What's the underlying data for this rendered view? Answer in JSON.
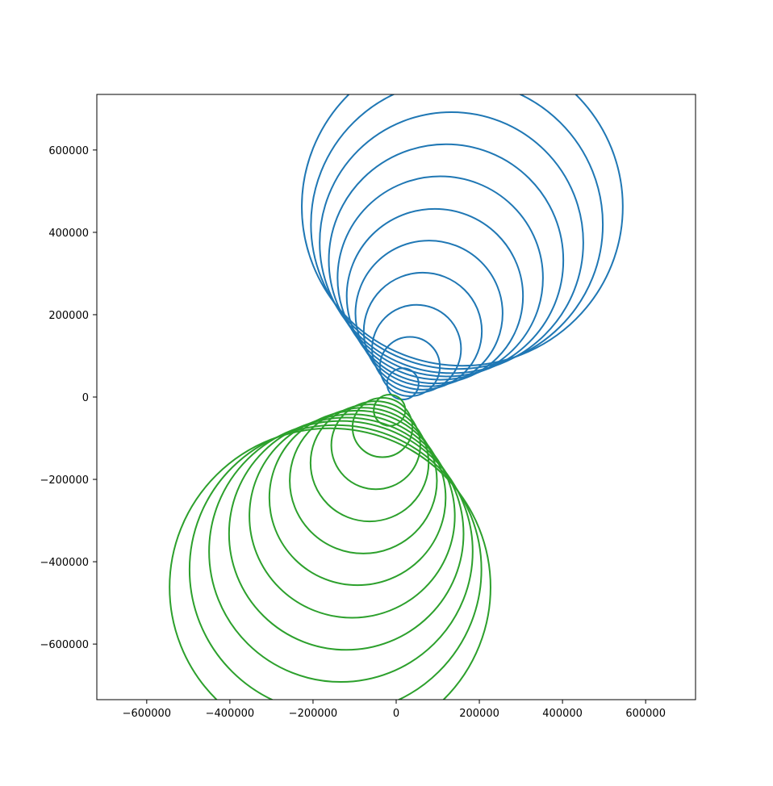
{
  "chart_data": {
    "type": "line",
    "title": "",
    "xlabel": "",
    "ylabel": "",
    "xlim": [
      -720000,
      720000
    ],
    "ylim": [
      -735000,
      735000
    ],
    "grid": false,
    "legend": "none",
    "x_ticks": [
      {
        "value": -600000,
        "label": "−600000"
      },
      {
        "value": -400000,
        "label": "−400000"
      },
      {
        "value": -200000,
        "label": "−200000"
      },
      {
        "value": 0,
        "label": "0"
      },
      {
        "value": 200000,
        "label": "200000"
      },
      {
        "value": 400000,
        "label": "400000"
      },
      {
        "value": 600000,
        "label": "600000"
      }
    ],
    "y_ticks": [
      {
        "value": -600000,
        "label": "−600000"
      },
      {
        "value": -400000,
        "label": "−400000"
      },
      {
        "value": -200000,
        "label": "−200000"
      },
      {
        "value": 0,
        "label": "0"
      },
      {
        "value": 200000,
        "label": "200000"
      },
      {
        "value": 400000,
        "label": "400000"
      },
      {
        "value": 600000,
        "label": "600000"
      }
    ],
    "series": [
      {
        "color": "#1f77b4",
        "circles": [
          {
            "cx": 16000,
            "cy": 32000,
            "r": 38000
          },
          {
            "cx": 33000,
            "cy": 74000,
            "r": 72000
          },
          {
            "cx": 49000,
            "cy": 117000,
            "r": 107000
          },
          {
            "cx": 64000,
            "cy": 160000,
            "r": 142000
          },
          {
            "cx": 79000,
            "cy": 203000,
            "r": 177000
          },
          {
            "cx": 93000,
            "cy": 245000,
            "r": 212000
          },
          {
            "cx": 106000,
            "cy": 289000,
            "r": 247000
          },
          {
            "cx": 120000,
            "cy": 332000,
            "r": 282000
          },
          {
            "cx": 133000,
            "cy": 375000,
            "r": 317000
          },
          {
            "cx": 146000,
            "cy": 419000,
            "r": 351000
          },
          {
            "cx": 159000,
            "cy": 462000,
            "r": 386000
          }
        ]
      },
      {
        "color": "#2ca02c",
        "circles": [
          {
            "cx": -16000,
            "cy": -32000,
            "r": 38000
          },
          {
            "cx": -33000,
            "cy": -74000,
            "r": 72000
          },
          {
            "cx": -49000,
            "cy": -117000,
            "r": 107000
          },
          {
            "cx": -64000,
            "cy": -160000,
            "r": 142000
          },
          {
            "cx": -79000,
            "cy": -203000,
            "r": 177000
          },
          {
            "cx": -93000,
            "cy": -245000,
            "r": 212000
          },
          {
            "cx": -106000,
            "cy": -289000,
            "r": 247000
          },
          {
            "cx": -120000,
            "cy": -332000,
            "r": 282000
          },
          {
            "cx": -133000,
            "cy": -375000,
            "r": 317000
          },
          {
            "cx": -146000,
            "cy": -419000,
            "r": 351000
          },
          {
            "cx": -159000,
            "cy": -462000,
            "r": 386000
          }
        ]
      }
    ]
  }
}
